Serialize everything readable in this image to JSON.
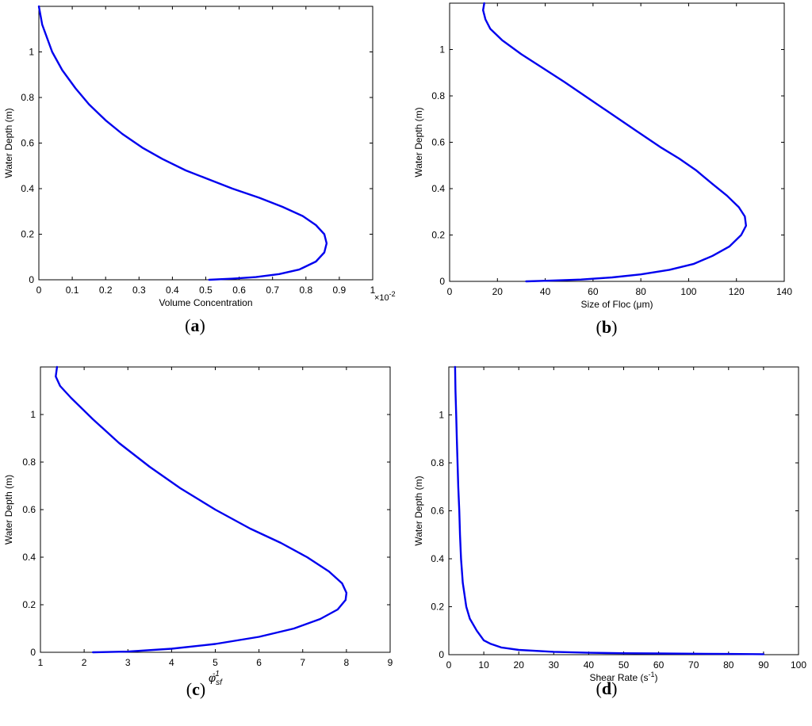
{
  "chart_data": [
    {
      "type": "line",
      "panel_label": "a",
      "xlabel": "Volume Concentration",
      "xlabel_exponent": "×10-2",
      "ylabel": "Water Depth (m)",
      "xlim": [
        0,
        1
      ],
      "ylim": [
        0,
        1.2
      ],
      "xticks": [
        0,
        0.1,
        0.2,
        0.3,
        0.4,
        0.5,
        0.6,
        0.7,
        0.8,
        0.9,
        1
      ],
      "xtick_labels": [
        "0",
        "0.1",
        "0.2",
        "0.3",
        "0.4",
        "0.5",
        "0.6",
        "0.7",
        "0.8",
        "0.9",
        "1"
      ],
      "yticks": [
        0,
        0.2,
        0.4,
        0.6,
        0.8,
        1
      ],
      "ytick_labels": [
        "0",
        "0.2",
        "0.4",
        "0.6",
        "0.8",
        "1"
      ],
      "series": [
        {
          "color": "#0000ee",
          "points": [
            [
              0.51,
              0.0
            ],
            [
              0.58,
              0.005
            ],
            [
              0.65,
              0.012
            ],
            [
              0.72,
              0.025
            ],
            [
              0.78,
              0.045
            ],
            [
              0.83,
              0.08
            ],
            [
              0.855,
              0.12
            ],
            [
              0.862,
              0.16
            ],
            [
              0.855,
              0.2
            ],
            [
              0.83,
              0.24
            ],
            [
              0.79,
              0.28
            ],
            [
              0.73,
              0.32
            ],
            [
              0.66,
              0.36
            ],
            [
              0.58,
              0.4
            ],
            [
              0.51,
              0.44
            ],
            [
              0.44,
              0.48
            ],
            [
              0.37,
              0.53
            ],
            [
              0.31,
              0.58
            ],
            [
              0.25,
              0.64
            ],
            [
              0.2,
              0.7
            ],
            [
              0.15,
              0.77
            ],
            [
              0.11,
              0.84
            ],
            [
              0.07,
              0.92
            ],
            [
              0.04,
              1.0
            ],
            [
              0.02,
              1.08
            ],
            [
              0.01,
              1.12
            ],
            [
              0.0,
              1.2
            ]
          ]
        }
      ]
    },
    {
      "type": "line",
      "panel_label": "b",
      "xlabel": "Size of Floc (μm)",
      "ylabel": "Water Depth (m)",
      "xlim": [
        0,
        140
      ],
      "ylim": [
        0,
        1.2
      ],
      "xticks": [
        0,
        20,
        40,
        60,
        80,
        100,
        120,
        140
      ],
      "xtick_labels": [
        "0",
        "20",
        "40",
        "60",
        "80",
        "100",
        "120",
        "140"
      ],
      "yticks": [
        0,
        0.2,
        0.4,
        0.6,
        0.8,
        1
      ],
      "ytick_labels": [
        "0",
        "0.2",
        "0.4",
        "0.6",
        "0.8",
        "1"
      ],
      "series": [
        {
          "color": "#0000ee",
          "points": [
            [
              32,
              0.0
            ],
            [
              42,
              0.003
            ],
            [
              55,
              0.008
            ],
            [
              68,
              0.017
            ],
            [
              80,
              0.03
            ],
            [
              92,
              0.05
            ],
            [
              102,
              0.075
            ],
            [
              110,
              0.11
            ],
            [
              117,
              0.15
            ],
            [
              122,
              0.2
            ],
            [
              124,
              0.24
            ],
            [
              123.5,
              0.28
            ],
            [
              121,
              0.32
            ],
            [
              116,
              0.37
            ],
            [
              110,
              0.42
            ],
            [
              103,
              0.48
            ],
            [
              96,
              0.53
            ],
            [
              88,
              0.58
            ],
            [
              78,
              0.65
            ],
            [
              68,
              0.72
            ],
            [
              58,
              0.79
            ],
            [
              48,
              0.86
            ],
            [
              39,
              0.92
            ],
            [
              30,
              0.98
            ],
            [
              22,
              1.04
            ],
            [
              17,
              1.09
            ],
            [
              15,
              1.13
            ],
            [
              14,
              1.17
            ],
            [
              14.5,
              1.2
            ]
          ]
        }
      ]
    },
    {
      "type": "line",
      "panel_label": "c",
      "xlabel": "φsf-1",
      "ylabel": "Water Depth (m)",
      "xlim": [
        1,
        9
      ],
      "ylim": [
        0,
        1.2
      ],
      "xticks": [
        1,
        2,
        3,
        4,
        5,
        6,
        7,
        8,
        9
      ],
      "xtick_labels": [
        "1",
        "2",
        "3",
        "4",
        "5",
        "6",
        "7",
        "8",
        "9"
      ],
      "yticks": [
        0,
        0.2,
        0.4,
        0.6,
        0.8,
        1
      ],
      "ytick_labels": [
        "0",
        "0.2",
        "0.4",
        "0.6",
        "0.8",
        "1"
      ],
      "series": [
        {
          "color": "#0000ee",
          "points": [
            [
              2.2,
              0.0
            ],
            [
              3.0,
              0.003
            ],
            [
              4.0,
              0.015
            ],
            [
              5.0,
              0.035
            ],
            [
              6.0,
              0.065
            ],
            [
              6.8,
              0.1
            ],
            [
              7.4,
              0.14
            ],
            [
              7.8,
              0.18
            ],
            [
              7.98,
              0.22
            ],
            [
              8.0,
              0.25
            ],
            [
              7.9,
              0.29
            ],
            [
              7.6,
              0.34
            ],
            [
              7.1,
              0.4
            ],
            [
              6.5,
              0.46
            ],
            [
              5.8,
              0.52
            ],
            [
              5.0,
              0.6
            ],
            [
              4.2,
              0.69
            ],
            [
              3.5,
              0.78
            ],
            [
              2.8,
              0.88
            ],
            [
              2.2,
              0.98
            ],
            [
              1.7,
              1.07
            ],
            [
              1.45,
              1.12
            ],
            [
              1.35,
              1.16
            ],
            [
              1.38,
              1.2
            ]
          ]
        }
      ]
    },
    {
      "type": "line",
      "panel_label": "d",
      "xlabel": "Shear Rate (s-1)",
      "ylabel": "Water Depth (m)",
      "xlim": [
        0,
        100
      ],
      "ylim": [
        0,
        1.2
      ],
      "xticks": [
        0,
        10,
        20,
        30,
        40,
        50,
        60,
        70,
        80,
        90,
        100
      ],
      "xtick_labels": [
        "0",
        "10",
        "20",
        "30",
        "40",
        "50",
        "60",
        "70",
        "80",
        "90",
        "100"
      ],
      "yticks": [
        0,
        0.2,
        0.4,
        0.6,
        0.8,
        1
      ],
      "ytick_labels": [
        "0",
        "0.2",
        "0.4",
        "0.6",
        "0.8",
        "1"
      ],
      "series": [
        {
          "color": "#0000ee",
          "points": [
            [
              90,
              0.002
            ],
            [
              80,
              0.003
            ],
            [
              70,
              0.004
            ],
            [
              60,
              0.005
            ],
            [
              50,
              0.006
            ],
            [
              40,
              0.008
            ],
            [
              30,
              0.012
            ],
            [
              20,
              0.02
            ],
            [
              15,
              0.03
            ],
            [
              12,
              0.045
            ],
            [
              10,
              0.06
            ],
            [
              8,
              0.1
            ],
            [
              6,
              0.15
            ],
            [
              5,
              0.2
            ],
            [
              4,
              0.3
            ],
            [
              3.5,
              0.4
            ],
            [
              3.2,
              0.5
            ],
            [
              3.0,
              0.6
            ],
            [
              2.7,
              0.7
            ],
            [
              2.5,
              0.8
            ],
            [
              2.3,
              0.9
            ],
            [
              2.1,
              1.0
            ],
            [
              1.9,
              1.1
            ],
            [
              1.8,
              1.2
            ]
          ]
        }
      ]
    }
  ]
}
